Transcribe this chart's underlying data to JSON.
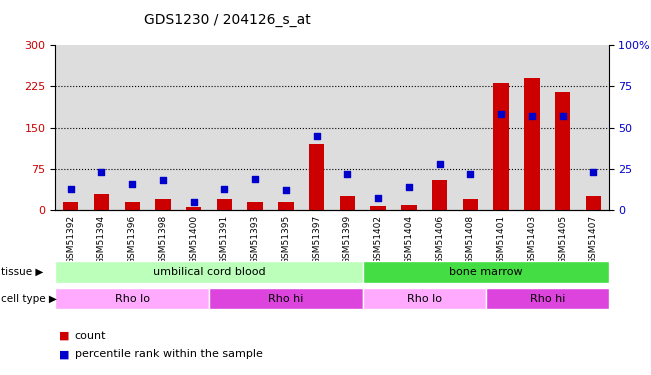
{
  "title": "GDS1230 / 204126_s_at",
  "samples": [
    "GSM51392",
    "GSM51394",
    "GSM51396",
    "GSM51398",
    "GSM51400",
    "GSM51391",
    "GSM51393",
    "GSM51395",
    "GSM51397",
    "GSM51399",
    "GSM51402",
    "GSM51404",
    "GSM51406",
    "GSM51408",
    "GSM51401",
    "GSM51403",
    "GSM51405",
    "GSM51407"
  ],
  "count_values": [
    15,
    30,
    15,
    20,
    5,
    20,
    15,
    15,
    120,
    25,
    8,
    10,
    55,
    20,
    230,
    240,
    215,
    25
  ],
  "percentile_values": [
    13,
    23,
    16,
    18,
    5,
    13,
    19,
    12,
    45,
    22,
    7,
    14,
    28,
    22,
    58,
    57,
    57,
    23
  ],
  "ylim_left": [
    0,
    300
  ],
  "ylim_right": [
    0,
    100
  ],
  "yticks_left": [
    0,
    75,
    150,
    225,
    300
  ],
  "yticks_right": [
    0,
    25,
    50,
    75,
    100
  ],
  "ylabel_left_color": "#cc0000",
  "ylabel_right_color": "#0000cc",
  "bar_color": "#cc0000",
  "dot_color": "#0000cc",
  "tissue_groups": [
    {
      "label": "umbilical cord blood",
      "start": 0,
      "end": 9,
      "color": "#bbffbb"
    },
    {
      "label": "bone marrow",
      "start": 10,
      "end": 17,
      "color": "#44dd44"
    }
  ],
  "cell_type_groups": [
    {
      "label": "Rho lo",
      "start": 0,
      "end": 4,
      "color": "#ffaaff"
    },
    {
      "label": "Rho hi",
      "start": 5,
      "end": 9,
      "color": "#dd44dd"
    },
    {
      "label": "Rho lo",
      "start": 10,
      "end": 13,
      "color": "#ffaaff"
    },
    {
      "label": "Rho hi",
      "start": 14,
      "end": 17,
      "color": "#dd44dd"
    }
  ],
  "legend_count_label": "count",
  "legend_pct_label": "percentile rank within the sample",
  "tissue_label": "tissue",
  "cell_type_label": "cell type",
  "plot_bg_color": "#dddddd",
  "bar_width": 0.5
}
